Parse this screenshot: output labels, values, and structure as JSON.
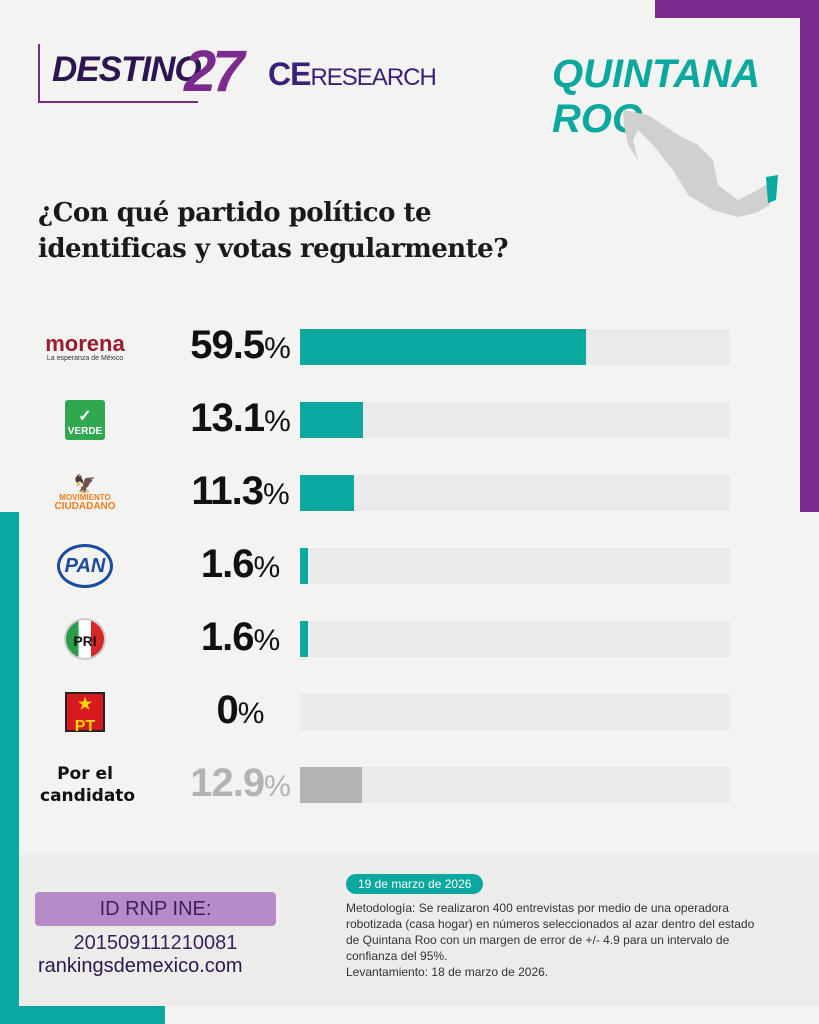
{
  "header": {
    "brand1": "DESTINO",
    "brand1_num": "27",
    "brand2_bold": "CE",
    "brand2_light": "RESEARCH",
    "state": "QUINTANA ROO"
  },
  "question": "¿Con qué partido político te identificas y votas regularmente?",
  "logos": {
    "morena": "morena",
    "morena_sub": "La esperanza de México",
    "verde": "VERDE",
    "mc1": "MOVIMIENTO",
    "mc2": "CIUDADANO",
    "pan": "PAN",
    "pri": "PRI",
    "pt": "PT"
  },
  "chart_data": {
    "type": "bar",
    "title": "¿Con qué partido político te identificas y votas regularmente?",
    "categories": [
      "Morena",
      "Verde",
      "Movimiento Ciudadano",
      "PAN",
      "PRI",
      "PT",
      "Por el candidato"
    ],
    "values": [
      59.5,
      13.1,
      11.3,
      1.6,
      1.6,
      0,
      12.9
    ],
    "labels": [
      "59.5",
      "13.1",
      "11.3",
      "1.6",
      "1.6",
      "0",
      "12.9"
    ],
    "unit": "%",
    "xlim": [
      0,
      89.6
    ],
    "colors": [
      "#0aa89e",
      "#0aa89e",
      "#0aa89e",
      "#0aa89e",
      "#0aa89e",
      "#0aa89e",
      "#b3b3b3"
    ]
  },
  "candidate_label": "Por el candidato",
  "footer": {
    "rnp": "ID RNP INE: 201509111210081",
    "site": "rankingsdemexico.com",
    "date": "19 de marzo de 2026",
    "methodology": "Metodología: Se realizaron 400 entrevistas por medio de una operadora robotizada (casa hogar) en números seleccionados al azar dentro del estado de Quintana Roo con un margen de error de +/- 4.9 para un intervalo de confianza del 95%.",
    "fieldwork": "Levantamiento: 18 de marzo de 2026."
  }
}
